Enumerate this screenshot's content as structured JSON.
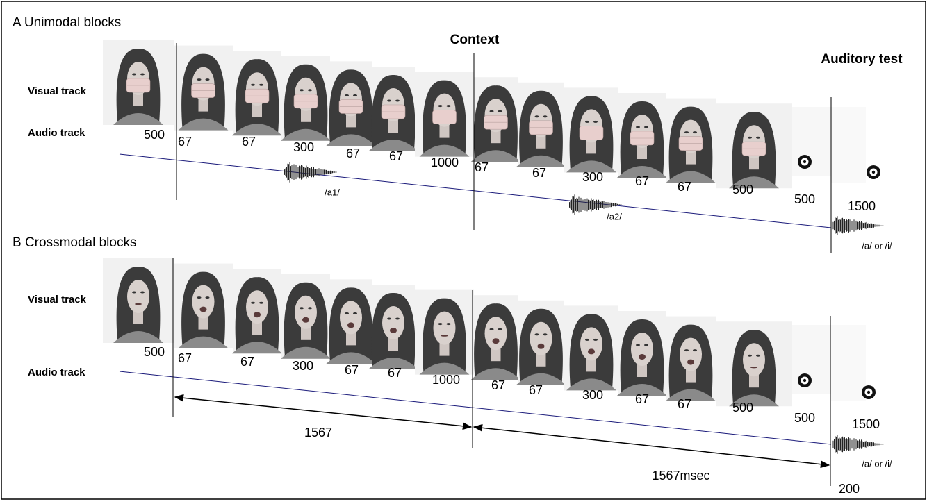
{
  "context": "Context",
  "auditory_test": "Auditory test",
  "panels": [
    {
      "title": "A  Unimodal blocks",
      "visual_track": "Visual track",
      "audio_track": "Audio track",
      "durations": [
        500,
        67,
        67,
        300,
        67,
        67,
        1000,
        67,
        67,
        300,
        67,
        67,
        500,
        500,
        1500
      ],
      "sounds": [
        "/a1/",
        "/a2/",
        "/a/ or /i/"
      ]
    },
    {
      "title": "B  Crossmodal blocks",
      "visual_track": "Visual track",
      "audio_track": "Audio track",
      "durations": [
        500,
        67,
        67,
        300,
        67,
        67,
        1000,
        67,
        67,
        300,
        67,
        67,
        500,
        500,
        1500
      ],
      "sounds": [
        "/a/ or /i/"
      ]
    }
  ],
  "intervals": [
    1567,
    "1567msec",
    200
  ]
}
